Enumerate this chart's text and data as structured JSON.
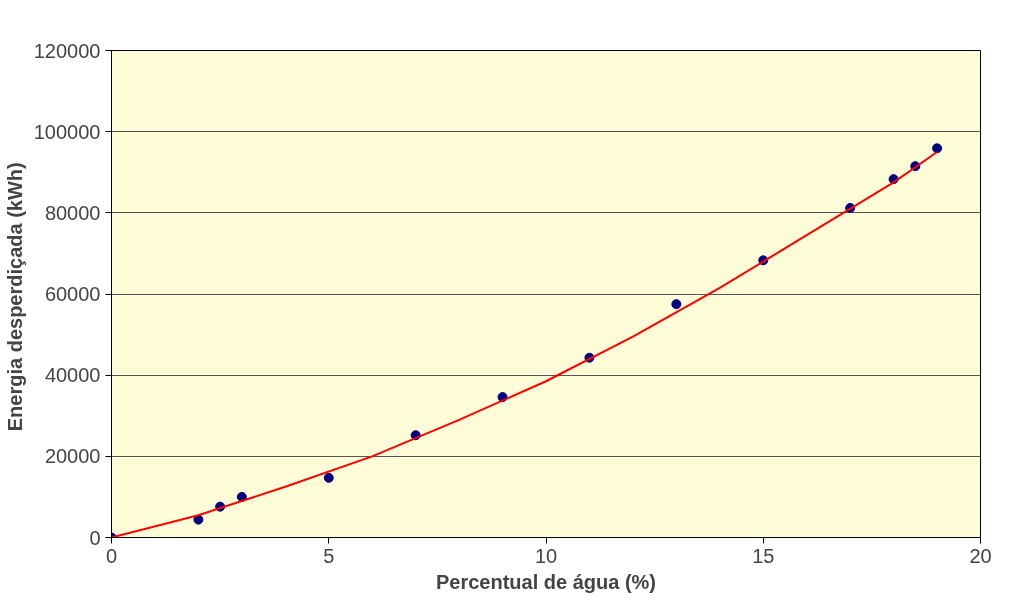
{
  "chart_data": {
    "type": "scatter",
    "xlabel": "Percentual de água (%)",
    "ylabel": "Energia desperdiçada  (kWh)",
    "xlim": [
      0,
      20
    ],
    "xticks": [
      0,
      5,
      10,
      15,
      20
    ],
    "ylim": [
      0,
      120000
    ],
    "yticks": [
      0,
      20000,
      40000,
      60000,
      80000,
      100000,
      120000
    ],
    "grid": "y",
    "series": [
      {
        "marker": "circle",
        "color": "#000080",
        "x": [
          0,
          2,
          2.5,
          3,
          5,
          7,
          9,
          11,
          13,
          15,
          17,
          18,
          18.5,
          19
        ],
        "values": [
          0,
          4400,
          7600,
          10000,
          14700,
          25200,
          34600,
          44300,
          57500,
          68300,
          81200,
          88300,
          91500,
          95900
        ]
      },
      {
        "type": "line",
        "color": "#ff0000",
        "x": [
          0,
          2,
          4,
          6,
          8,
          10,
          12,
          14,
          16,
          18,
          19
        ],
        "values": [
          0,
          5500,
          12500,
          20000,
          29000,
          38500,
          49500,
          61500,
          74500,
          87500,
          95000
        ]
      }
    ]
  }
}
